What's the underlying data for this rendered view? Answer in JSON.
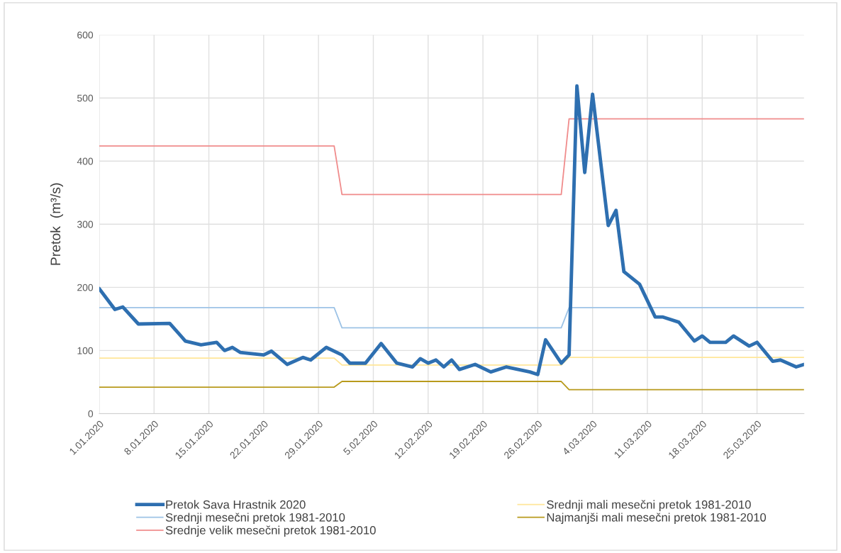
{
  "chart_data": {
    "type": "line",
    "ylabel": "Pretok  (m³/s)",
    "xlim": [
      "2020-01-01",
      "2020-03-31"
    ],
    "xticks": [
      {
        "value": "2020-01-01",
        "label": "1.01.2020"
      },
      {
        "value": "2020-01-08",
        "label": "8.01.2020"
      },
      {
        "value": "2020-01-15",
        "label": "15.01.2020"
      },
      {
        "value": "2020-01-22",
        "label": "22.01.2020"
      },
      {
        "value": "2020-01-29",
        "label": "29.01.2020"
      },
      {
        "value": "2020-02-05",
        "label": "5.02.2020"
      },
      {
        "value": "2020-02-12",
        "label": "12.02.2020"
      },
      {
        "value": "2020-02-19",
        "label": "19.02.2020"
      },
      {
        "value": "2020-02-26",
        "label": "26.02.2020"
      },
      {
        "value": "2020-03-04",
        "label": "4.03.2020"
      },
      {
        "value": "2020-03-11",
        "label": "11.03.2020"
      },
      {
        "value": "2020-03-18",
        "label": "18.03.2020"
      },
      {
        "value": "2020-03-25",
        "label": "25.03.2020"
      }
    ],
    "ylim": [
      0,
      600
    ],
    "yticks": [
      0,
      100,
      200,
      300,
      400,
      500,
      600
    ],
    "grid": true,
    "legend": "bottom",
    "marker": "none",
    "line_style": "solid",
    "series": [
      {
        "name": "Pretok Sava Hrastnik 2020",
        "color": "#2e6fb0",
        "x": [
          "2020-01-01",
          "2020-01-03",
          "2020-01-04",
          "2020-01-06",
          "2020-01-10",
          "2020-01-12",
          "2020-01-14",
          "2020-01-16",
          "2020-01-17",
          "2020-01-18",
          "2020-01-19",
          "2020-01-22",
          "2020-01-23",
          "2020-01-25",
          "2020-01-27",
          "2020-01-28",
          "2020-01-30",
          "2020-02-01",
          "2020-02-02",
          "2020-02-04",
          "2020-02-06",
          "2020-02-08",
          "2020-02-10",
          "2020-02-11",
          "2020-02-12",
          "2020-02-13",
          "2020-02-14",
          "2020-02-15",
          "2020-02-16",
          "2020-02-18",
          "2020-02-20",
          "2020-02-22",
          "2020-02-25",
          "2020-02-26",
          "2020-02-27",
          "2020-02-29",
          "2020-03-01",
          "2020-03-02",
          "2020-03-03",
          "2020-03-04",
          "2020-03-06",
          "2020-03-07",
          "2020-03-08",
          "2020-03-10",
          "2020-03-12",
          "2020-03-13",
          "2020-03-15",
          "2020-03-17",
          "2020-03-18",
          "2020-03-19",
          "2020-03-21",
          "2020-03-22",
          "2020-03-24",
          "2020-03-25",
          "2020-03-27",
          "2020-03-28",
          "2020-03-30",
          "2020-03-31"
        ],
        "values": [
          198,
          165,
          169,
          142,
          143,
          115,
          109,
          113,
          100,
          105,
          97,
          93,
          99,
          78,
          89,
          85,
          105,
          93,
          80,
          80,
          111,
          80,
          74,
          87,
          80,
          85,
          74,
          85,
          70,
          78,
          66,
          74,
          66,
          62,
          117,
          80,
          93,
          519,
          382,
          506,
          298,
          322,
          225,
          205,
          153,
          153,
          145,
          115,
          123,
          113,
          113,
          123,
          107,
          113,
          83,
          85,
          74,
          78
        ]
      },
      {
        "name": "Srednji mesečni pretok 1981-2010",
        "color": "#9dc3e6",
        "x": [
          "2020-01-01",
          "2020-01-31",
          "2020-02-01",
          "2020-02-29",
          "2020-03-01",
          "2020-03-31"
        ],
        "values": [
          168,
          168,
          136,
          136,
          168,
          168
        ]
      },
      {
        "name": "Srednje velik mesečni pretok 1981-2010",
        "color": "#f08c8c",
        "x": [
          "2020-01-01",
          "2020-01-31",
          "2020-02-01",
          "2020-02-29",
          "2020-03-01",
          "2020-03-31"
        ],
        "values": [
          424,
          424,
          347,
          347,
          467,
          467
        ]
      },
      {
        "name": "Srednji mali mesečni pretok 1981-2010",
        "color": "#ffe699",
        "x": [
          "2020-01-01",
          "2020-01-31",
          "2020-02-01",
          "2020-02-29",
          "2020-03-01",
          "2020-03-31"
        ],
        "values": [
          88,
          88,
          77,
          77,
          89,
          89
        ]
      },
      {
        "name": "Najmanjši mali mesečni pretok 1981-2010",
        "color": "#b89a1c",
        "x": [
          "2020-01-01",
          "2020-01-31",
          "2020-02-01",
          "2020-02-29",
          "2020-03-01",
          "2020-03-31"
        ],
        "values": [
          42,
          42,
          51,
          51,
          38,
          38
        ]
      }
    ]
  }
}
